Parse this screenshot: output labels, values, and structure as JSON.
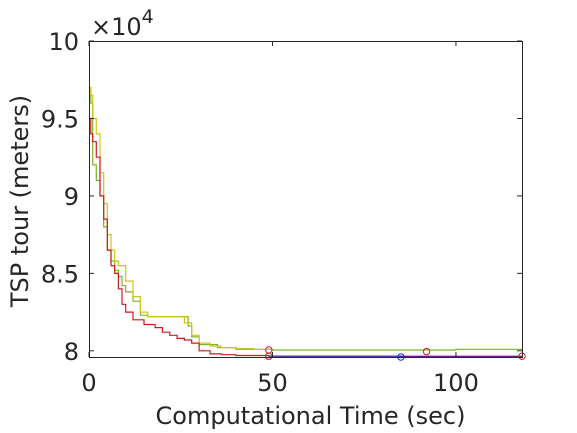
{
  "chart_data": {
    "type": "line",
    "title": "",
    "xlabel": "Computational Time (sec)",
    "ylabel": "TSP tour (meters)",
    "xlim": [
      0,
      118
    ],
    "ylim": [
      79600,
      100000
    ],
    "x_ticks": [
      0,
      50,
      100
    ],
    "y_ticks": [
      80000,
      85000,
      90000,
      95000,
      100000
    ],
    "x_tick_labels": [
      "0",
      "50",
      "100"
    ],
    "y_tick_labels": [
      "8",
      "8.5",
      "9",
      "9.5",
      "10"
    ],
    "y_exponent_label": {
      "prefix": "×10",
      "power": "4"
    },
    "grid": false,
    "series": [
      {
        "color": "#7bb32e",
        "x": [
          0,
          0.5,
          1,
          2,
          3,
          4,
          5,
          6,
          7,
          8,
          9,
          10,
          12,
          14,
          16,
          20,
          25,
          27,
          28,
          30,
          35,
          40,
          45,
          50,
          60,
          70,
          80,
          90,
          100,
          110,
          118
        ],
        "y": [
          96800,
          96000,
          92000,
          91000,
          90000,
          88000,
          86500,
          85800,
          85200,
          84800,
          84200,
          83800,
          83200,
          82300,
          82200,
          82200,
          82200,
          81600,
          80900,
          80400,
          80200,
          80100,
          80100,
          80050,
          80050,
          80050,
          80050,
          80050,
          80100,
          80100,
          80150
        ]
      },
      {
        "color": "#d4c21a",
        "x": [
          0,
          0.5,
          1,
          2,
          3,
          4,
          5,
          6,
          7,
          8,
          10,
          12,
          14,
          16,
          20,
          23,
          25,
          26,
          28,
          30,
          33,
          36,
          40,
          45,
          49
        ],
        "y": [
          97000,
          96500,
          95000,
          94000,
          91500,
          89500,
          87500,
          86500,
          85800,
          85500,
          84500,
          83500,
          82500,
          82200,
          82200,
          82200,
          82200,
          81800,
          81000,
          80500,
          80300,
          80200,
          80150,
          80100,
          80050
        ]
      },
      {
        "color": "#cc1b1b",
        "x": [
          0,
          0.5,
          1,
          2,
          3,
          4,
          5,
          6,
          7,
          8,
          9,
          10,
          12,
          15,
          18,
          20,
          22,
          24,
          26,
          28,
          30,
          33,
          36,
          40,
          45,
          49,
          60,
          70,
          80,
          92,
          100,
          110,
          118
        ],
        "y": [
          95000,
          94000,
          93500,
          92500,
          90000,
          88500,
          86500,
          85500,
          85000,
          84000,
          83000,
          82500,
          82000,
          81700,
          81500,
          81200,
          81000,
          80800,
          80700,
          80500,
          80000,
          79800,
          79750,
          79700,
          79700,
          79650,
          79650,
          79650,
          79650,
          79650,
          79650,
          79650,
          79650
        ]
      },
      {
        "color": "#1f2ecc",
        "x": [
          49,
          60,
          70,
          80,
          85,
          92,
          100,
          110,
          118
        ],
        "y": [
          79650,
          79650,
          79650,
          79650,
          79600,
          79600,
          79600,
          79600,
          79600
        ]
      }
    ],
    "markers": [
      {
        "x": 49,
        "y": 80050,
        "color": "#cc1b1b"
      },
      {
        "x": 49,
        "y": 79650,
        "color": "#cc1b1b"
      },
      {
        "x": 85,
        "y": 79600,
        "color": "#1f2ecc"
      },
      {
        "x": 92,
        "y": 79950,
        "color": "#cc1b1b"
      },
      {
        "x": 118,
        "y": 79650,
        "color": "#cc1b1b"
      }
    ]
  }
}
